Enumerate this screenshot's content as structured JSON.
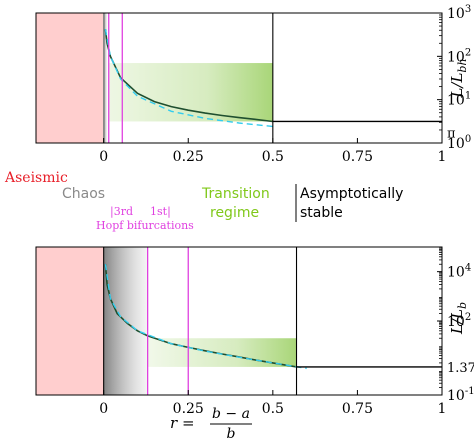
{
  "colors": {
    "aseismic": "#ffb3b3",
    "aseismic_text": "#e8202a",
    "chaos": "#8a8a8a",
    "transition": "#8cc84b",
    "transition_text": "#80c81a",
    "hopf": "#e040e0",
    "curve": "#1f4f2f",
    "dashed": "#33ccee",
    "axis": "#000000"
  },
  "chart_data": [
    {
      "type": "line",
      "xlim": [
        -0.2,
        1.0
      ],
      "x_ticks": [
        "0",
        "0.25",
        "0.5",
        "0.75",
        "1"
      ],
      "y_scale": "log",
      "ylim": [
        1,
        1000
      ],
      "y_right_ticks": [
        "10^0",
        "10^1",
        "10^2",
        "10^3"
      ],
      "y_left_ticks": [
        "π"
      ],
      "ylabel": "L / L_bh",
      "asymptote": {
        "value": 3.1416,
        "label": "π",
        "x_start": 0.5
      },
      "vertical_lines": [
        {
          "x": 0.0,
          "style": "black"
        },
        {
          "x": 0.5,
          "style": "black"
        },
        {
          "x": 0.0,
          "style": "gray"
        }
      ],
      "hopf_lines": [
        0.015,
        0.055
      ],
      "regions": {
        "aseismic": [
          -0.2,
          0.0
        ],
        "chaos": [
          0.0,
          0.01
        ],
        "transition": {
          "x": [
            0.015,
            0.5
          ],
          "y": [
            3.1416,
            70
          ]
        }
      },
      "series": [
        {
          "style": "solid",
          "x": [
            0.005,
            0.01,
            0.02,
            0.05,
            0.1,
            0.15,
            0.2,
            0.25,
            0.3,
            0.35,
            0.4,
            0.45,
            0.5
          ],
          "y": [
            420,
            200,
            100,
            32,
            14,
            9,
            6.9,
            5.7,
            4.9,
            4.3,
            3.85,
            3.5,
            3.1416
          ]
        },
        {
          "style": "dashed",
          "x": [
            0.005,
            0.02,
            0.05,
            0.1,
            0.2,
            0.3,
            0.4,
            0.5
          ],
          "y": [
            420,
            100,
            30,
            12,
            5.4,
            3.7,
            2.9,
            2.4
          ]
        }
      ]
    },
    {
      "type": "line",
      "xlim": [
        -0.2,
        1.0
      ],
      "x_ticks": [
        "0",
        "0.25",
        "0.5",
        "0.75",
        "1"
      ],
      "y_scale": "log",
      "ylim": [
        0.1,
        100000
      ],
      "y_right_ticks": [
        "10^-1",
        "10^2",
        "10^4"
      ],
      "y_left_ticks": [
        "1.3774"
      ],
      "ylabel": "L / L_b",
      "xlabel": "r = (b − a) / b",
      "asymptote": {
        "value": 1.3774,
        "label": "1.3774",
        "x_start": 0.57
      },
      "vertical_lines": [
        {
          "x": 0.0,
          "style": "black"
        },
        {
          "x": 0.57,
          "style": "black"
        }
      ],
      "hopf_lines": [
        0.13,
        0.25
      ],
      "regions": {
        "aseismic": [
          -0.2,
          0.0
        ],
        "chaos": [
          0.0,
          0.13
        ],
        "transition": {
          "x": [
            0.13,
            0.57
          ],
          "y": [
            1.3774,
            20
          ]
        }
      },
      "series": [
        {
          "style": "solid",
          "x": [
            0.005,
            0.01,
            0.02,
            0.04,
            0.07,
            0.1,
            0.13,
            0.2,
            0.25,
            0.3,
            0.35,
            0.4,
            0.45,
            0.5,
            0.57
          ],
          "y": [
            20000,
            3000,
            800,
            200,
            80,
            40,
            25,
            12,
            8.5,
            6.2,
            4.6,
            3.5,
            2.6,
            2.0,
            1.3774
          ]
        },
        {
          "style": "dashed",
          "x": [
            0.005,
            0.02,
            0.05,
            0.1,
            0.2,
            0.3,
            0.4,
            0.5,
            0.6
          ],
          "y": [
            20000,
            800,
            150,
            40,
            12,
            6,
            3.4,
            2.0,
            1.2
          ]
        }
      ]
    }
  ],
  "labels": {
    "aseismic": "Aseismic",
    "chaos": "Chaos",
    "third": "|3rd",
    "first": "1st|",
    "hopf": "Hopf bifurcations",
    "transition_line1": "Transition",
    "transition_line2": "regime",
    "asymptotic_line1": "Asymptotically",
    "asymptotic_line2": "stable",
    "r_lhs": "r =",
    "r_num": "b − a",
    "r_den": "b"
  }
}
